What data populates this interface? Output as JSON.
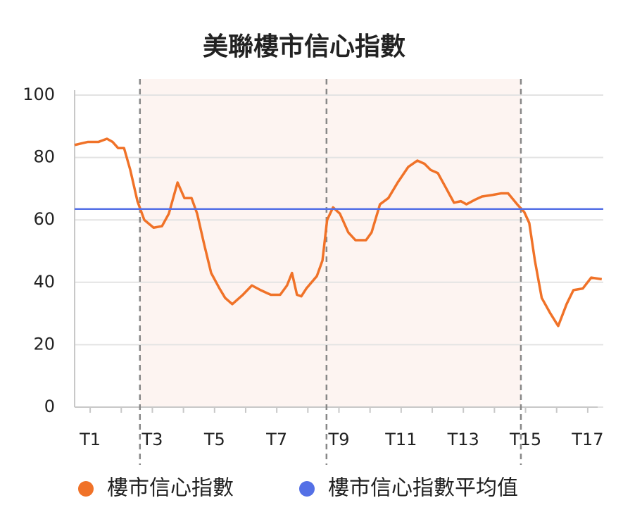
{
  "chart_data": {
    "type": "line",
    "title": "美聯樓市信心指數",
    "xlim": [
      0.5,
      17.5
    ],
    "ylim": [
      0,
      100
    ],
    "yticks": [
      0,
      20,
      40,
      60,
      80,
      100
    ],
    "xticks": [
      {
        "value": 1,
        "label": "T1"
      },
      {
        "value": 3,
        "label": "T3"
      },
      {
        "value": 5,
        "label": "T5"
      },
      {
        "value": 7,
        "label": "T7"
      },
      {
        "value": 9,
        "label": "T9"
      },
      {
        "value": 11,
        "label": "T11"
      },
      {
        "value": 13,
        "label": "T13"
      },
      {
        "value": 15,
        "label": "T15"
      },
      {
        "value": 17,
        "label": "T17"
      }
    ],
    "minor_xticks": [
      2,
      4,
      6,
      8,
      10,
      12,
      14,
      16
    ],
    "grid": true,
    "vlines": [
      2.6,
      8.6,
      14.85
    ],
    "shaded_range": [
      2.6,
      14.85
    ],
    "series": [
      {
        "name": "樓市信心指數",
        "color": "#f07228",
        "x": [
          0.5,
          0.71,
          0.93,
          1.27,
          1.54,
          1.72,
          1.9,
          2.09,
          2.29,
          2.52,
          2.74,
          3.04,
          3.31,
          3.53,
          3.81,
          4.03,
          4.26,
          4.44,
          4.67,
          4.89,
          5.16,
          5.34,
          5.57,
          5.91,
          6.2,
          6.48,
          6.81,
          7.11,
          7.33,
          7.49,
          7.65,
          7.79,
          7.95,
          8.29,
          8.47,
          8.62,
          8.81,
          9.03,
          9.3,
          9.53,
          9.87,
          10.05,
          10.32,
          10.59,
          10.89,
          11.23,
          11.52,
          11.75,
          11.95,
          12.18,
          12.4,
          12.7,
          12.92,
          13.1,
          13.38,
          13.6,
          13.94,
          14.21,
          14.44,
          14.73,
          14.96,
          15.12,
          15.3,
          15.52,
          15.8,
          16.05,
          16.32,
          16.54,
          16.84,
          17.11,
          17.45
        ],
        "values": [
          84,
          84.5,
          85,
          85,
          86,
          85,
          83,
          83,
          76,
          66,
          60,
          57.5,
          58,
          62,
          72,
          67,
          67,
          62,
          52,
          43,
          38,
          35,
          33,
          36,
          39,
          37.5,
          36,
          36,
          39,
          43,
          36,
          35.5,
          38,
          42,
          47,
          60,
          64,
          62,
          56,
          53.5,
          53.5,
          56,
          65,
          67,
          72,
          77,
          79,
          78,
          76,
          75,
          71,
          65.5,
          66,
          65,
          66.5,
          67.5,
          68,
          68.5,
          68.5,
          65,
          62.5,
          59,
          47,
          35,
          30,
          26,
          33,
          37.5,
          38,
          41.5,
          41
        ]
      },
      {
        "name": "樓市信心指數平均值",
        "color": "#5470e6",
        "value": 63.5
      }
    ]
  }
}
